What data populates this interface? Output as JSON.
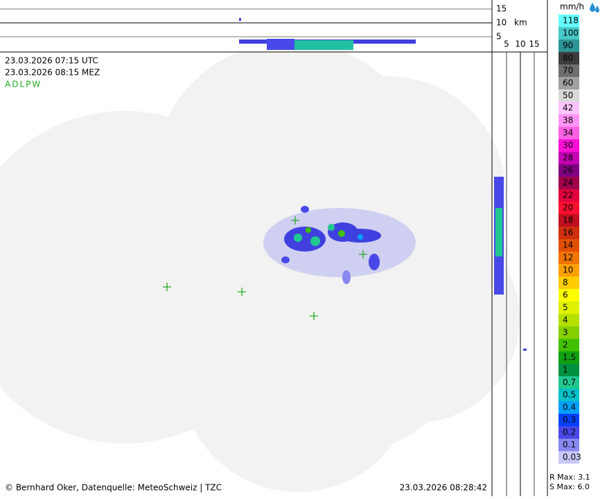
{
  "header": {
    "utc": "23.03.2026 07:15 UTC",
    "local": "23.03.2026 08:15 MEZ",
    "product": "ADLPW"
  },
  "top_axis": {
    "ticks": [
      "15",
      "10",
      "5"
    ],
    "unit": "km"
  },
  "side_axis": {
    "ticks": [
      "5",
      "10",
      "15"
    ]
  },
  "legend": {
    "unit": "mm/h",
    "labels": [
      118,
      100,
      90,
      80,
      70,
      60,
      50,
      42,
      38,
      34,
      30,
      28,
      26,
      24,
      22,
      20,
      18,
      16,
      14,
      12,
      10,
      8,
      6,
      5,
      4,
      3,
      2,
      1.5,
      1,
      0.7,
      0.5,
      0.4,
      0.3,
      0.2,
      0.1,
      0.03
    ],
    "colors": [
      "#66ffff",
      "#48c8c8",
      "#2c9494",
      "#3c3c3c",
      "#6e6e6e",
      "#a0a0a0",
      "#d8d8d8",
      "#ffc4ff",
      "#ff94f4",
      "#ff60e4",
      "#ff10d8",
      "#c400b4",
      "#800080",
      "#a0004c",
      "#e0003c",
      "#ff1030",
      "#c01020",
      "#d03010",
      "#e05000",
      "#f07400",
      "#ffa000",
      "#ffcc00",
      "#ffff00",
      "#e0f000",
      "#b4e000",
      "#84d000",
      "#40c000",
      "#10a010",
      "#009040",
      "#20c890",
      "#00c0c8",
      "#00a0ff",
      "#0040ff",
      "#4848e8",
      "#8888f0",
      "#c8c8f8"
    ]
  },
  "footer": {
    "credit": "© Bernhard Oker, Datenquelle: MeteoSchweiz | TZC",
    "timestamp": "23.03.2026 08:28:42",
    "r_max": "R Max: 3.1",
    "s_max": "S Max: 6.0"
  }
}
